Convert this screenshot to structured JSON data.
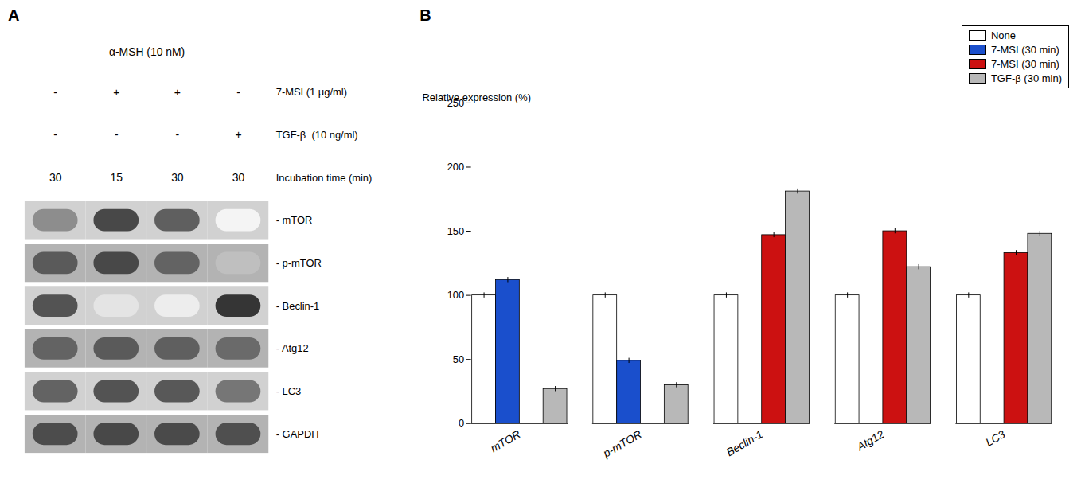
{
  "chart_data": [
    {
      "type": "blot",
      "title": "A",
      "header": "α-MSH (10 nM)",
      "rows": [
        {
          "label": "7-MSI (1 μg/ml)",
          "values": [
            "-",
            "+",
            "+",
            "-"
          ]
        },
        {
          "label": "TGF-β  (10 ng/ml)",
          "values": [
            "-",
            "-",
            "-",
            "+"
          ]
        },
        {
          "label": "Incubation time (min)",
          "values": [
            "30",
            "15",
            "30",
            "30"
          ]
        }
      ],
      "bands": [
        {
          "name": "- mTOR",
          "values": [
            0.5,
            0.8,
            0.7,
            0.05
          ]
        },
        {
          "name": "- p-mTOR",
          "values": [
            0.72,
            0.8,
            0.68,
            0.28
          ]
        },
        {
          "name": "- Beclin-1",
          "values": [
            0.75,
            0.12,
            0.08,
            0.88
          ]
        },
        {
          "name": "- Atg12",
          "values": [
            0.68,
            0.72,
            0.7,
            0.65
          ]
        },
        {
          "name": "- LC3",
          "values": [
            0.68,
            0.75,
            0.73,
            0.6
          ]
        },
        {
          "name": "- GAPDH",
          "values": [
            0.78,
            0.8,
            0.79,
            0.77
          ]
        }
      ]
    },
    {
      "type": "bar",
      "title": "B",
      "categories": [
        "mTOR",
        "p-mTOR",
        "Beclin-1",
        "Atg12",
        "LC3"
      ],
      "series": [
        {
          "name": "None",
          "color": "#ffffff",
          "values": [
            100,
            100,
            100,
            100,
            100
          ],
          "errors": [
            2,
            2,
            2,
            2,
            2
          ]
        },
        {
          "name": "7-MSI (30 min)",
          "color": "#1a4fcc",
          "values": [
            112,
            49,
            null,
            null,
            null
          ],
          "errors": [
            2,
            2,
            null,
            null,
            null
          ]
        },
        {
          "name": "7-MSI (30 min)",
          "color": "#cc1111",
          "values": [
            null,
            null,
            147,
            150,
            133
          ],
          "errors": [
            null,
            null,
            2,
            2,
            2
          ]
        },
        {
          "name": "TGF-β (30 min)",
          "color": "#b8b8b8",
          "values": [
            27,
            30,
            181,
            122,
            148
          ],
          "errors": [
            2,
            2,
            2,
            2,
            2
          ]
        }
      ],
      "ylabel": "Relative expression (%)",
      "ylim": [
        0,
        250
      ],
      "yticks": [
        0,
        50,
        100,
        150,
        200,
        250
      ],
      "legend": "upper right"
    }
  ]
}
